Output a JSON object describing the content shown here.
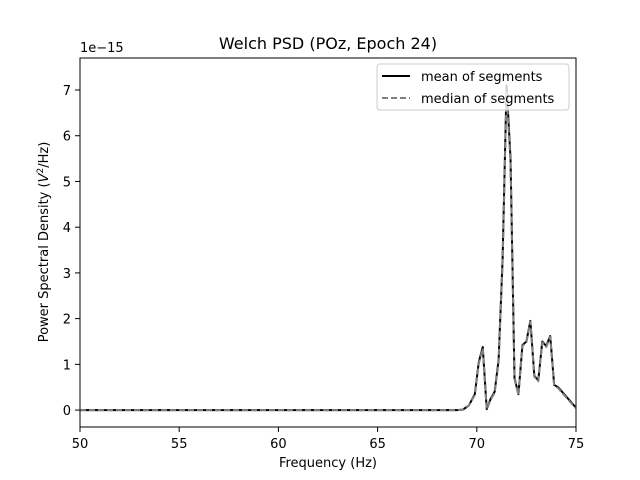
{
  "chart_data": {
    "type": "line",
    "title": "Welch PSD (POz, Epoch 24)",
    "xlabel": "Frequency (Hz)",
    "ylabel_parts": [
      "Power Spectral Density (",
      "V",
      "2",
      "/Hz)"
    ],
    "offset_text": "1e−15",
    "xlim": [
      50,
      75
    ],
    "ylim": [
      -0.37,
      7.7
    ],
    "x_ticks": [
      50,
      55,
      60,
      65,
      70,
      75
    ],
    "y_ticks": [
      0,
      1,
      2,
      3,
      4,
      5,
      6,
      7
    ],
    "grid": false,
    "legend_position": "top-right",
    "x": [
      50,
      52,
      54,
      56,
      58,
      60,
      62,
      64,
      66,
      68,
      69,
      69.3,
      69.6,
      69.9,
      70.1,
      70.3,
      70.5,
      70.7,
      70.9,
      71.1,
      71.3,
      71.5,
      71.7,
      71.9,
      72.1,
      72.3,
      72.5,
      72.7,
      72.9,
      73.1,
      73.3,
      73.5,
      73.7,
      73.9,
      74.1,
      74.3,
      74.5,
      74.7,
      74.9,
      75
    ],
    "series": [
      {
        "name": "mean of segments",
        "color": "#000000",
        "dash": "solid",
        "values": [
          0,
          0,
          0,
          0,
          0,
          0,
          0,
          0,
          0,
          0,
          0,
          0.01,
          0.1,
          0.35,
          1.05,
          1.38,
          0.02,
          0.25,
          0.4,
          1.1,
          3.3,
          7.1,
          5.5,
          0.7,
          0.35,
          1.42,
          1.5,
          1.95,
          0.75,
          0.65,
          1.5,
          1.4,
          1.62,
          0.55,
          0.5,
          0.4,
          0.3,
          0.2,
          0.1,
          0.05
        ]
      },
      {
        "name": "median of segments",
        "color": "#808080",
        "dash": "dashed",
        "values": [
          0,
          0,
          0,
          0,
          0,
          0,
          0,
          0,
          0,
          0,
          0,
          0.01,
          0.1,
          0.33,
          1.02,
          1.35,
          0.02,
          0.23,
          0.38,
          1.05,
          3.2,
          6.95,
          5.4,
          0.68,
          0.33,
          1.4,
          1.48,
          1.93,
          0.73,
          0.63,
          1.48,
          1.38,
          1.6,
          0.53,
          0.48,
          0.38,
          0.28,
          0.18,
          0.09,
          0.04
        ]
      }
    ]
  }
}
